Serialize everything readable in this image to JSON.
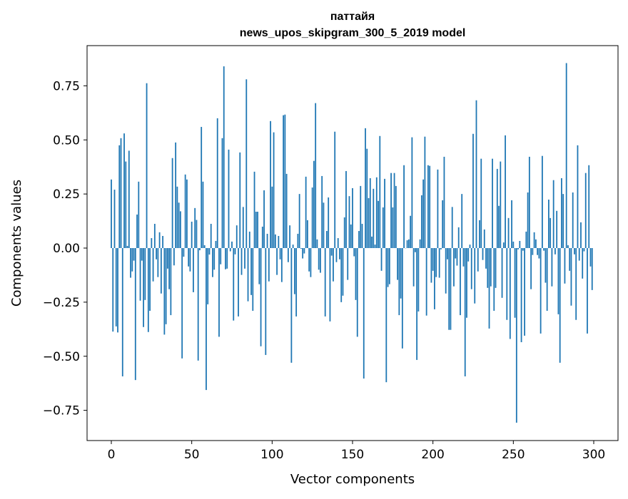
{
  "chart_data": {
    "type": "bar",
    "title": "паттайя",
    "subtitle": "news_upos_skipgram_300_5_2019 model",
    "xlabel": "Vector components",
    "ylabel": "Components values",
    "xlim": [
      -15,
      315
    ],
    "ylim": [
      -0.89,
      0.94
    ],
    "xticks": [
      0,
      50,
      100,
      150,
      200,
      250,
      300
    ],
    "xtick_labels": [
      "0",
      "50",
      "100",
      "150",
      "200",
      "250",
      "300"
    ],
    "yticks": [
      0.75,
      0.5,
      0.25,
      0,
      -0.25,
      -0.5,
      -0.75
    ],
    "ytick_labels": [
      "0.75",
      "0.50",
      "0.25",
      "0.00",
      "−0.25",
      "−0.50",
      "−0.75"
    ],
    "grid": false,
    "bar_color": "#1f77b4",
    "values": [
      0.317,
      -0.386,
      0.27,
      -0.362,
      -0.39,
      0.475,
      0.508,
      -0.593,
      0.53,
      0.4,
      0.01,
      0.45,
      -0.137,
      -0.108,
      -0.058,
      -0.61,
      0.155,
      0.307,
      -0.243,
      -0.058,
      -0.365,
      -0.24,
      0.762,
      -0.388,
      -0.29,
      0.046,
      -0.154,
      0.112,
      -0.052,
      -0.134,
      0.073,
      -0.21,
      0.056,
      -0.4,
      -0.352,
      -0.095,
      -0.19,
      -0.31,
      0.416,
      -0.08,
      0.488,
      0.284,
      0.21,
      0.17,
      -0.51,
      -0.04,
      0.34,
      0.317,
      -0.085,
      -0.108,
      0.122,
      -0.204,
      0.185,
      0.13,
      -0.52,
      -0.01,
      0.56,
      0.307,
      0.013,
      -0.656,
      -0.26,
      -0.03,
      0.112,
      -0.134,
      -0.1,
      0.033,
      0.6,
      -0.41,
      -0.075,
      0.508,
      0.84,
      -0.098,
      -0.095,
      0.455,
      -0.015,
      0.03,
      -0.335,
      -0.029,
      0.105,
      -0.316,
      0.442,
      -0.124,
      0.19,
      -0.095,
      0.78,
      -0.246,
      0.076,
      -0.217,
      -0.29,
      0.353,
      0.168,
      0.168,
      -0.167,
      -0.454,
      0.099,
      0.267,
      -0.494,
      0.066,
      -0.154,
      0.587,
      0.284,
      0.535,
      0.063,
      -0.124,
      0.056,
      -0.052,
      -0.157,
      0.614,
      0.617,
      0.343,
      -0.065,
      0.105,
      -0.53,
      0.016,
      -0.213,
      -0.316,
      0.066,
      0.25,
      -0.003,
      -0.048,
      -0.025,
      0.33,
      0.129,
      -0.108,
      -0.134,
      0.28,
      0.403,
      0.67,
      0.04,
      -0.1,
      -0.114,
      0.333,
      0.21,
      -0.316,
      0.079,
      0.234,
      -0.339,
      -0.035,
      -0.154,
      0.538,
      -0.065,
      0.046,
      -0.052,
      -0.25,
      -0.22,
      0.142,
      0.356,
      -0.147,
      0.24,
      0.109,
      0.277,
      -0.038,
      -0.24,
      -0.41,
      0.079,
      0.287,
      0.112,
      -0.603,
      0.554,
      0.459,
      0.231,
      0.323,
      0.053,
      0.274,
      0.016,
      0.327,
      0.218,
      0.518,
      -0.105,
      0.188,
      0.32,
      -0.62,
      -0.18,
      -0.167,
      0.347,
      0.188,
      0.347,
      0.287,
      -0.147,
      -0.31,
      -0.233,
      -0.464,
      0.383,
      0.0,
      0.036,
      0.04,
      0.149,
      0.512,
      -0.177,
      -0.019,
      -0.517,
      -0.293,
      0.04,
      0.244,
      0.317,
      0.515,
      -0.312,
      0.383,
      0.38,
      -0.16,
      -0.105,
      -0.283,
      -0.134,
      0.363,
      -0.137,
      -0.006,
      0.221,
      0.422,
      -0.21,
      -0.052,
      -0.378,
      -0.378,
      0.19,
      -0.177,
      -0.048,
      -0.081,
      0.096,
      -0.31,
      0.25,
      -0.085,
      -0.593,
      -0.322,
      -0.062,
      0.016,
      -0.19,
      0.528,
      -0.256,
      0.683,
      -0.108,
      0.129,
      0.413,
      -0.055,
      0.086,
      -0.095,
      -0.184,
      -0.372,
      -0.177,
      0.413,
      -0.29,
      -0.184,
      0.366,
      0.195,
      0.4,
      -0.23,
      0.026,
      0.521,
      -0.332,
      0.139,
      -0.42,
      0.221,
      0.03,
      -0.322,
      -0.807,
      -0.006,
      0.033,
      -0.435,
      -0.012,
      -0.405,
      0.076,
      0.257,
      0.422,
      -0.19,
      -0.032,
      0.073,
      0.04,
      -0.032,
      -0.048,
      -0.395,
      0.426,
      -0.012,
      -0.16,
      -0.29,
      0.224,
      0.139,
      -0.177,
      0.314,
      -0.029,
      0.172,
      -0.306,
      -0.53,
      0.323,
      0.25,
      -0.164,
      0.855,
      0.013,
      -0.105,
      -0.266,
      0.257,
      -0.029,
      -0.332,
      0.475,
      -0.058,
      0.119,
      -0.141,
      -0.015,
      0.347,
      -0.395,
      0.383,
      -0.085,
      -0.194
    ]
  }
}
